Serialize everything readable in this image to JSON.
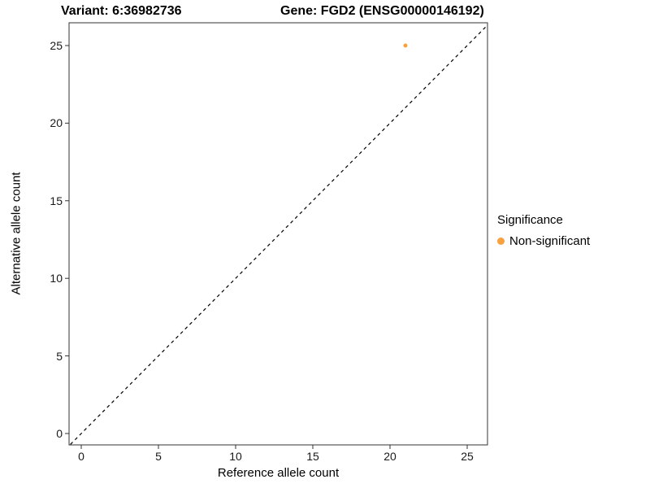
{
  "titles": {
    "variant": "Variant: 6:36982736",
    "gene": "Gene: FGD2 (ENSG00000146192)"
  },
  "chart_data": {
    "type": "scatter",
    "xlabel": "Reference allele count",
    "ylabel": "Alternative allele count",
    "xlim": [
      -0.8,
      26.3
    ],
    "ylim": [
      -0.75,
      26.5
    ],
    "xticks": [
      0,
      5,
      10,
      15,
      20,
      25
    ],
    "yticks": [
      0,
      5,
      10,
      15,
      20,
      25
    ],
    "grid": false,
    "points": [
      {
        "x": 21,
        "y": 25,
        "series": "Non-significant"
      }
    ],
    "identity_line": {
      "style": "dashed",
      "color": "#000000",
      "from": [
        -1,
        -1
      ],
      "to": [
        27,
        27
      ]
    },
    "legend": {
      "title": "Significance",
      "position": "right",
      "entries": [
        {
          "label": "Non-significant",
          "color": "#F9A03F"
        }
      ]
    }
  }
}
